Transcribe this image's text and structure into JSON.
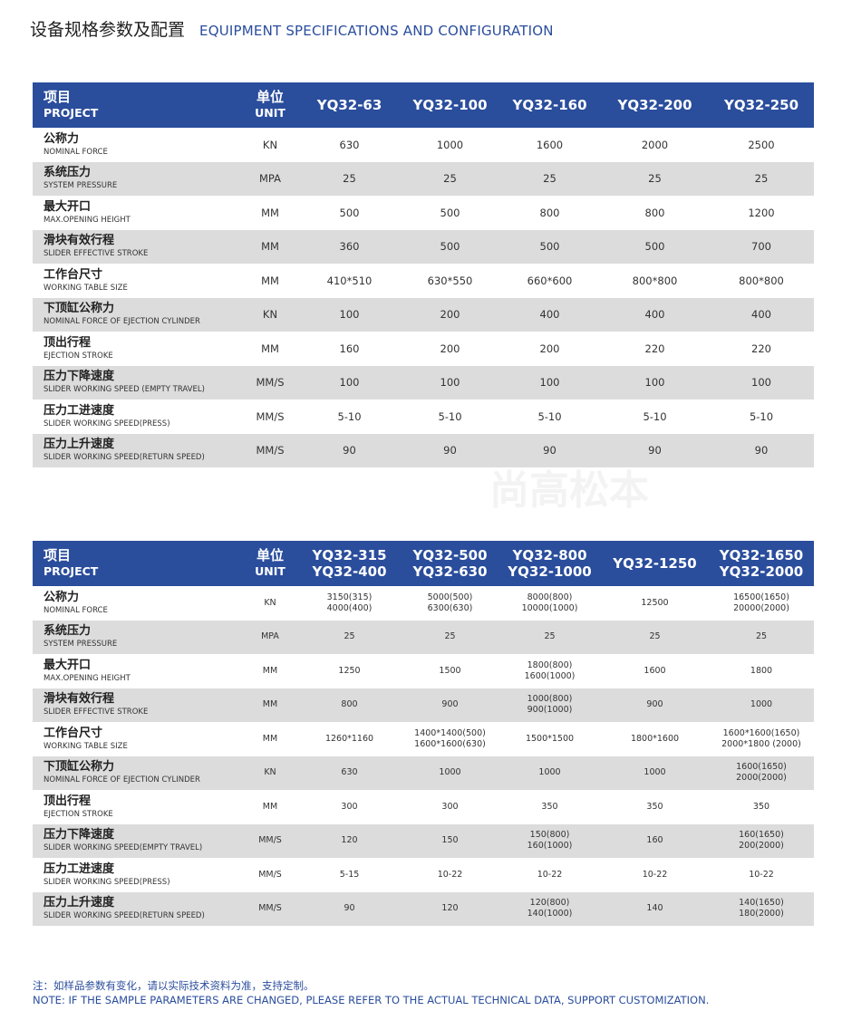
{
  "title": {
    "cn": "设备规格参数及配置",
    "en": "EQUIPMENT SPECIFICATIONS AND CONFIGURATION"
  },
  "watermark": "尚高松本",
  "colors": {
    "header": "#2a4d9c",
    "row_alt": "#dcdcdc",
    "note": "#2a4d9c"
  },
  "header": {
    "project_cn": "项目",
    "project_en": "PROJECT",
    "unit_cn": "单位",
    "unit_en": "UNIT"
  },
  "table1": {
    "models": [
      [
        "YQ32-63"
      ],
      [
        "YQ32-100"
      ],
      [
        "YQ32-160"
      ],
      [
        "YQ32-200"
      ],
      [
        "YQ32-250"
      ]
    ],
    "rows": [
      {
        "cn": "公称力",
        "en": "NOMINAL FORCE",
        "unit": "KN",
        "values": [
          [
            "630"
          ],
          [
            "1000"
          ],
          [
            "1600"
          ],
          [
            "2000"
          ],
          [
            "2500"
          ]
        ]
      },
      {
        "cn": "系统压力",
        "en": "SYSTEM PRESSURE",
        "unit": "MPA",
        "values": [
          [
            "25"
          ],
          [
            "25"
          ],
          [
            "25"
          ],
          [
            "25"
          ],
          [
            "25"
          ]
        ]
      },
      {
        "cn": "最大开口",
        "en": "MAX.OPENING HEIGHT",
        "unit": "MM",
        "values": [
          [
            "500"
          ],
          [
            "500"
          ],
          [
            "800"
          ],
          [
            "800"
          ],
          [
            "1200"
          ]
        ]
      },
      {
        "cn": "滑块有效行程",
        "en": "SLIDER EFFECTIVE STROKE",
        "unit": "MM",
        "values": [
          [
            "360"
          ],
          [
            "500"
          ],
          [
            "500"
          ],
          [
            "500"
          ],
          [
            "700"
          ]
        ]
      },
      {
        "cn": "工作台尺寸",
        "en": "WORKING TABLE SIZE",
        "unit": "MM",
        "values": [
          [
            "410*510"
          ],
          [
            "630*550"
          ],
          [
            "660*600"
          ],
          [
            "800*800"
          ],
          [
            "800*800"
          ]
        ]
      },
      {
        "cn": "下顶缸公称力",
        "en": "NOMINAL FORCE OF EJECTION CYLINDER",
        "unit": "KN",
        "values": [
          [
            "100"
          ],
          [
            "200"
          ],
          [
            "400"
          ],
          [
            "400"
          ],
          [
            "400"
          ]
        ]
      },
      {
        "cn": "顶出行程",
        "en": "EJECTION STROKE",
        "unit": "MM",
        "values": [
          [
            "160"
          ],
          [
            "200"
          ],
          [
            "200"
          ],
          [
            "220"
          ],
          [
            "220"
          ]
        ]
      },
      {
        "cn": "压力下降速度",
        "en": "SLIDER WORKING SPEED (EMPTY TRAVEL)",
        "unit": "MM/S",
        "values": [
          [
            "100"
          ],
          [
            "100"
          ],
          [
            "100"
          ],
          [
            "100"
          ],
          [
            "100"
          ]
        ]
      },
      {
        "cn": "压力工进速度",
        "en": "SLIDER WORKING SPEED(PRESS)",
        "unit": "MM/S",
        "values": [
          [
            "5-10"
          ],
          [
            "5-10"
          ],
          [
            "5-10"
          ],
          [
            "5-10"
          ],
          [
            "5-10"
          ]
        ]
      },
      {
        "cn": "压力上升速度",
        "en": "SLIDER WORKING SPEED(RETURN SPEED)",
        "unit": "MM/S",
        "values": [
          [
            "90"
          ],
          [
            "90"
          ],
          [
            "90"
          ],
          [
            "90"
          ],
          [
            "90"
          ]
        ]
      }
    ]
  },
  "table2": {
    "models": [
      [
        "YQ32-315",
        "YQ32-400"
      ],
      [
        "YQ32-500",
        "YQ32-630"
      ],
      [
        "YQ32-800",
        "YQ32-1000"
      ],
      [
        "YQ32-1250"
      ],
      [
        "YQ32-1650",
        "YQ32-2000"
      ]
    ],
    "rows": [
      {
        "cn": "公称力",
        "en": "NOMINAL FORCE",
        "unit": "KN",
        "values": [
          [
            "3150(315)",
            "4000(400)"
          ],
          [
            "5000(500)",
            "6300(630)"
          ],
          [
            "8000(800)",
            "10000(1000)"
          ],
          [
            "12500"
          ],
          [
            "16500(1650)",
            "20000(2000)"
          ]
        ]
      },
      {
        "cn": "系统压力",
        "en": "SYSTEM PRESSURE",
        "unit": "MPA",
        "values": [
          [
            "25"
          ],
          [
            "25"
          ],
          [
            "25"
          ],
          [
            "25"
          ],
          [
            "25"
          ]
        ]
      },
      {
        "cn": "最大开口",
        "en": "MAX.OPENING HEIGHT",
        "unit": "MM",
        "values": [
          [
            "1250"
          ],
          [
            "1500"
          ],
          [
            "1800(800)",
            "1600(1000)"
          ],
          [
            "1600"
          ],
          [
            "1800"
          ]
        ]
      },
      {
        "cn": "滑块有效行程",
        "en": "SLIDER EFFECTIVE STROKE",
        "unit": "MM",
        "values": [
          [
            "800"
          ],
          [
            "900"
          ],
          [
            "1000(800)",
            "900(1000)"
          ],
          [
            "900"
          ],
          [
            "1000"
          ]
        ]
      },
      {
        "cn": "工作台尺寸",
        "en": "WORKING TABLE SIZE",
        "unit": "MM",
        "values": [
          [
            "1260*1160"
          ],
          [
            "1400*1400(500)",
            "1600*1600(630)"
          ],
          [
            "1500*1500"
          ],
          [
            "1800*1600"
          ],
          [
            "1600*1600(1650)",
            "2000*1800 (2000)"
          ]
        ]
      },
      {
        "cn": "下顶缸公称力",
        "en": "NOMINAL FORCE OF EJECTION CYLINDER",
        "unit": "KN",
        "values": [
          [
            "630"
          ],
          [
            "1000"
          ],
          [
            "1000"
          ],
          [
            "1000"
          ],
          [
            "1600(1650)",
            "2000(2000)"
          ]
        ]
      },
      {
        "cn": "顶出行程",
        "en": "EJECTION STROKE",
        "unit": "MM",
        "values": [
          [
            "300"
          ],
          [
            "300"
          ],
          [
            "350"
          ],
          [
            "350"
          ],
          [
            "350"
          ]
        ]
      },
      {
        "cn": "压力下降速度",
        "en": "SLIDER WORKING SPEED(EMPTY TRAVEL)",
        "unit": "MM/S",
        "values": [
          [
            "120"
          ],
          [
            "150"
          ],
          [
            "150(800)",
            "160(1000)"
          ],
          [
            "160"
          ],
          [
            "160(1650)",
            "200(2000)"
          ]
        ]
      },
      {
        "cn": "压力工进速度",
        "en": "SLIDER WORKING SPEED(PRESS)",
        "unit": "MM/S",
        "values": [
          [
            "5-15"
          ],
          [
            "10-22"
          ],
          [
            "10-22"
          ],
          [
            "10-22"
          ],
          [
            "10-22"
          ]
        ]
      },
      {
        "cn": "压力上升速度",
        "en": "SLIDER WORKING SPEED(RETURN SPEED)",
        "unit": "MM/S",
        "values": [
          [
            "90"
          ],
          [
            "120"
          ],
          [
            "120(800)",
            "140(1000)"
          ],
          [
            "140"
          ],
          [
            "140(1650)",
            "180(2000)"
          ]
        ]
      }
    ]
  },
  "note": {
    "cn": "注：如样品参数有变化，请以实际技术资料为准，支持定制。",
    "en": "NOTE: IF THE SAMPLE PARAMETERS ARE CHANGED, PLEASE REFER TO THE ACTUAL TECHNICAL DATA, SUPPORT CUSTOMIZATION."
  }
}
